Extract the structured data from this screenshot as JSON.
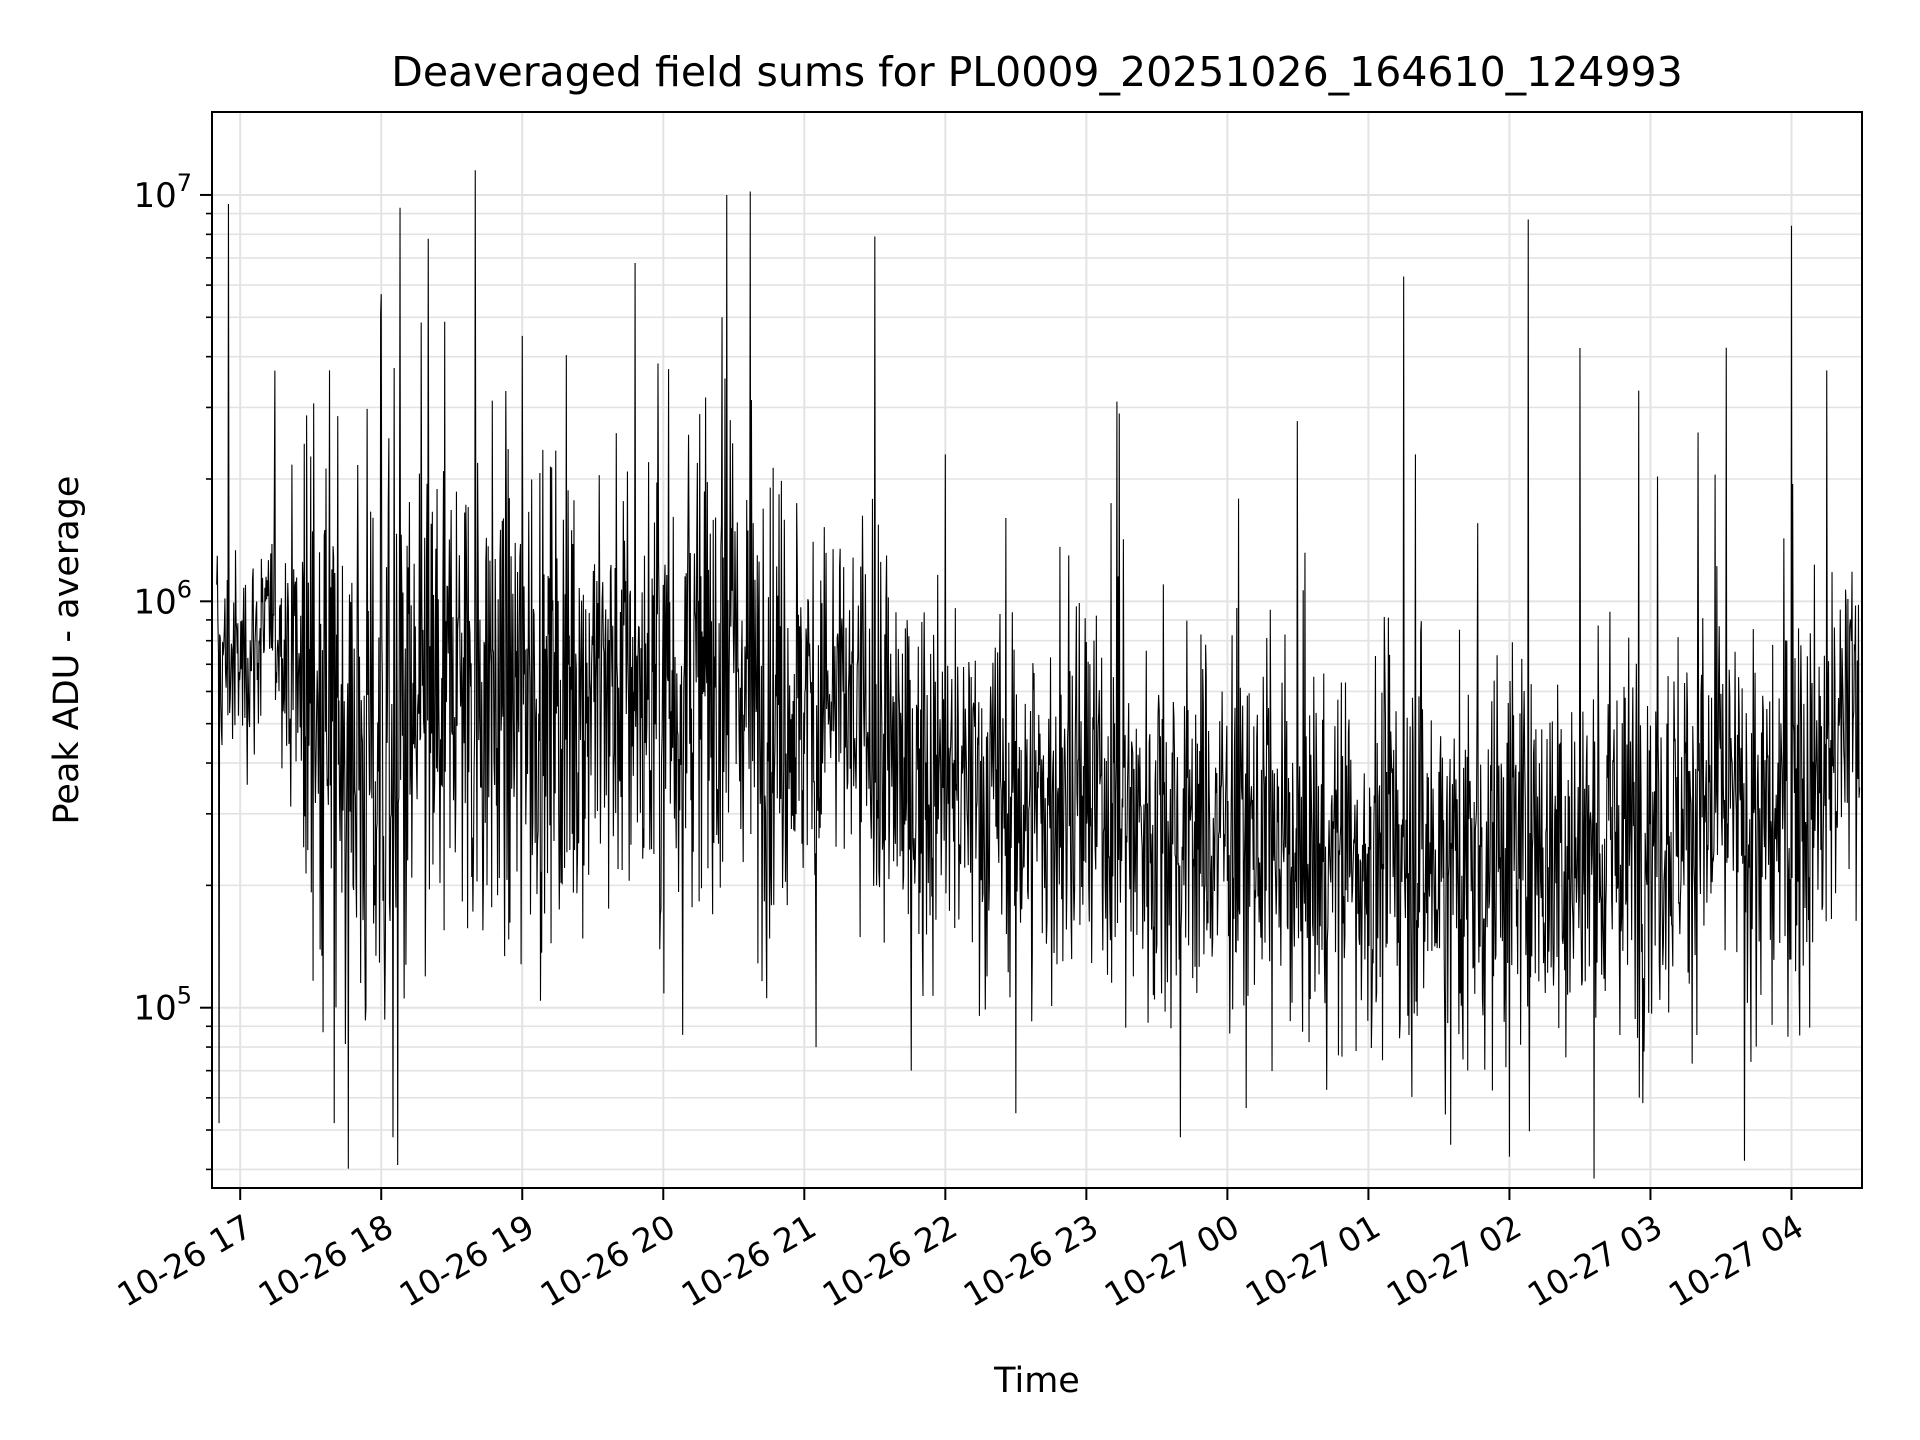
{
  "chart_data": {
    "type": "line",
    "title": "Deaveraged field sums for PL0009_20251026_164610_124993",
    "xlabel": "Time",
    "ylabel": "Peak ADU - average",
    "y_scale": "log",
    "ylim": [
      36000,
      16000000
    ],
    "xlim": [
      "2025-10-26 16:48",
      "2025-10-27 04:30"
    ],
    "grid": true,
    "line_color": "#000000",
    "x_ticks": [
      {
        "t": "2025-10-26 17:00",
        "label": "10-26 17"
      },
      {
        "t": "2025-10-26 18:00",
        "label": "10-26 18"
      },
      {
        "t": "2025-10-26 19:00",
        "label": "10-26 19"
      },
      {
        "t": "2025-10-26 20:00",
        "label": "10-26 20"
      },
      {
        "t": "2025-10-26 21:00",
        "label": "10-26 21"
      },
      {
        "t": "2025-10-26 22:00",
        "label": "10-26 22"
      },
      {
        "t": "2025-10-26 23:00",
        "label": "10-26 23"
      },
      {
        "t": "2025-10-27 00:00",
        "label": "10-27 00"
      },
      {
        "t": "2025-10-27 01:00",
        "label": "10-27 01"
      },
      {
        "t": "2025-10-27 02:00",
        "label": "10-27 02"
      },
      {
        "t": "2025-10-27 03:00",
        "label": "10-27 03"
      },
      {
        "t": "2025-10-27 04:00",
        "label": "10-27 04"
      }
    ],
    "y_ticks": [
      {
        "value": 100000,
        "base": "10",
        "exp": "5"
      },
      {
        "value": 1000000,
        "base": "10",
        "exp": "6"
      },
      {
        "value": 10000000,
        "base": "10",
        "exp": "7"
      }
    ],
    "x": [
      "2025-10-26 16:50",
      "2025-10-26 17:00",
      "2025-10-26 17:15",
      "2025-10-26 17:30",
      "2025-10-26 17:45",
      "2025-10-26 18:00",
      "2025-10-26 18:15",
      "2025-10-26 18:30",
      "2025-10-26 18:45",
      "2025-10-26 19:00",
      "2025-10-26 19:15",
      "2025-10-26 19:30",
      "2025-10-26 19:45",
      "2025-10-26 20:00",
      "2025-10-26 20:15",
      "2025-10-26 20:30",
      "2025-10-26 20:45",
      "2025-10-26 21:00",
      "2025-10-26 21:15",
      "2025-10-26 21:30",
      "2025-10-26 21:45",
      "2025-10-26 22:00",
      "2025-10-26 22:15",
      "2025-10-26 22:30",
      "2025-10-26 22:45",
      "2025-10-26 23:00",
      "2025-10-26 23:15",
      "2025-10-26 23:30",
      "2025-10-26 23:45",
      "2025-10-27 00:00",
      "2025-10-27 00:15",
      "2025-10-27 00:30",
      "2025-10-27 00:45",
      "2025-10-27 01:00",
      "2025-10-27 01:15",
      "2025-10-27 01:30",
      "2025-10-27 01:45",
      "2025-10-27 02:00",
      "2025-10-27 02:15",
      "2025-10-27 02:30",
      "2025-10-27 02:45",
      "2025-10-27 03:00",
      "2025-10-27 03:15",
      "2025-10-27 03:30",
      "2025-10-27 03:45",
      "2025-10-27 04:00",
      "2025-10-27 04:15",
      "2025-10-27 04:29"
    ],
    "series": [
      {
        "median": [
          700000,
          700000,
          900000,
          550000,
          450000,
          400000,
          450000,
          600000,
          600000,
          550000,
          600000,
          650000,
          600000,
          550000,
          650000,
          700000,
          550000,
          550000,
          550000,
          450000,
          350000,
          350000,
          330000,
          320000,
          300000,
          320000,
          300000,
          280000,
          270000,
          270000,
          260000,
          240000,
          230000,
          230000,
          240000,
          230000,
          220000,
          250000,
          240000,
          230000,
          250000,
          280000,
          300000,
          320000,
          250000,
          300000,
          350000,
          600000
        ],
        "spread": [
          0.35,
          0.3,
          0.3,
          0.75,
          0.85,
          0.9,
          0.85,
          0.75,
          0.75,
          0.75,
          0.7,
          0.7,
          0.7,
          0.75,
          0.75,
          0.7,
          0.7,
          0.6,
          0.6,
          0.6,
          0.55,
          0.55,
          0.55,
          0.55,
          0.55,
          0.55,
          0.55,
          0.55,
          0.55,
          0.55,
          0.55,
          0.55,
          0.55,
          0.55,
          0.6,
          0.6,
          0.6,
          0.6,
          0.6,
          0.6,
          0.6,
          0.6,
          0.55,
          0.55,
          0.6,
          0.6,
          0.6,
          0.55
        ]
      }
    ],
    "peaks": [
      {
        "t": "2025-10-26 16:55",
        "value": 9500000
      },
      {
        "t": "2025-10-26 17:38",
        "value": 3700000
      },
      {
        "t": "2025-10-26 18:00",
        "value": 5700000
      },
      {
        "t": "2025-10-26 18:08",
        "value": 9300000
      },
      {
        "t": "2025-10-26 18:20",
        "value": 7800000
      },
      {
        "t": "2025-10-26 18:40",
        "value": 11500000
      },
      {
        "t": "2025-10-26 19:00",
        "value": 4500000
      },
      {
        "t": "2025-10-26 19:48",
        "value": 6800000
      },
      {
        "t": "2025-10-26 20:25",
        "value": 5000000
      },
      {
        "t": "2025-10-26 20:27",
        "value": 10000000
      },
      {
        "t": "2025-10-26 20:37",
        "value": 10200000
      },
      {
        "t": "2025-10-26 21:30",
        "value": 7900000
      },
      {
        "t": "2025-10-26 22:00",
        "value": 2300000
      },
      {
        "t": "2025-10-26 23:13",
        "value": 3100000
      },
      {
        "t": "2025-10-27 01:15",
        "value": 6300000
      },
      {
        "t": "2025-10-27 01:20",
        "value": 2300000
      },
      {
        "t": "2025-10-27 02:08",
        "value": 8700000
      },
      {
        "t": "2025-10-27 02:30",
        "value": 4200000
      },
      {
        "t": "2025-10-27 02:55",
        "value": 3300000
      },
      {
        "t": "2025-10-27 04:00",
        "value": 8400000
      },
      {
        "t": "2025-10-27 04:15",
        "value": 3700000
      }
    ],
    "troughs": [
      {
        "t": "2025-10-26 16:51",
        "value": 52000
      },
      {
        "t": "2025-10-26 17:40",
        "value": 52000
      },
      {
        "t": "2025-10-26 18:05",
        "value": 48000
      },
      {
        "t": "2025-10-26 18:07",
        "value": 41000
      },
      {
        "t": "2025-10-26 21:05",
        "value": 80000
      },
      {
        "t": "2025-10-26 22:30",
        "value": 55000
      },
      {
        "t": "2025-10-26 23:40",
        "value": 48000
      },
      {
        "t": "2025-10-27 01:35",
        "value": 46000
      },
      {
        "t": "2025-10-27 02:00",
        "value": 43000
      },
      {
        "t": "2025-10-27 03:40",
        "value": 42000
      }
    ],
    "points_per_minute": 4
  }
}
